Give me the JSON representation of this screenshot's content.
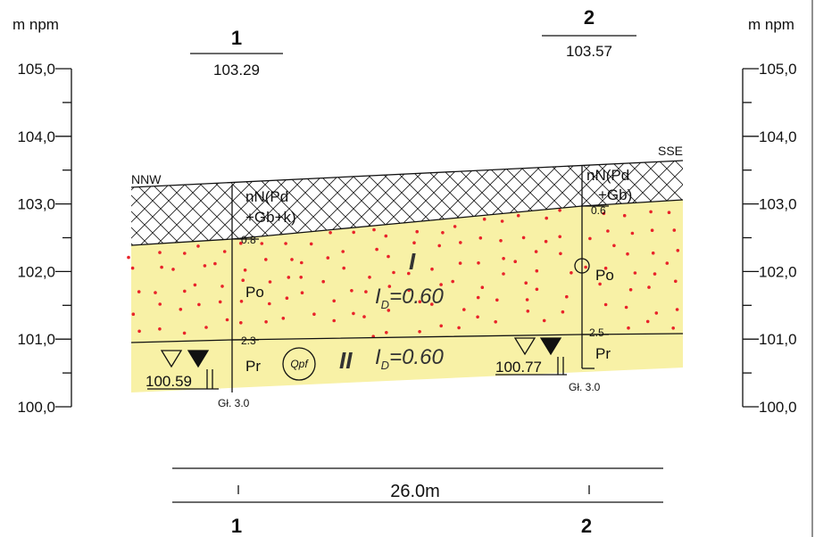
{
  "axes": {
    "left": {
      "unit": "m npm",
      "ticks": [
        "105,0",
        "104,0",
        "103,0",
        "102,0",
        "101,0",
        "100,0"
      ]
    },
    "right": {
      "unit": "m npm",
      "ticks": [
        "105,0",
        "104,0",
        "103,0",
        "102,0",
        "101,0",
        "100,0"
      ]
    }
  },
  "directions": {
    "left": "NNW",
    "right": "SSE"
  },
  "boreholes": [
    {
      "number": "1",
      "elevation": "103.29",
      "top_soil": [
        "nN(Pd",
        "+Gb+k)"
      ],
      "depth_1": "0.8",
      "layer_1": "Po",
      "depth_2": "2.3",
      "layer_2": "Pr",
      "water_level": "100.59",
      "total_depth": "Gł. 3.0"
    },
    {
      "number": "2",
      "elevation": "103.57",
      "top_soil": [
        "nN(Pd",
        "+Gb)"
      ],
      "depth_1": "0.6",
      "layer_1": "Po",
      "depth_2": "2.5",
      "layer_2": "Pr",
      "water_level": "100.77",
      "total_depth": "Gł. 3.0"
    }
  ],
  "layers": [
    {
      "roman": "I",
      "density": {
        "symbol": "I",
        "subscript": "D",
        "value": "=0.60"
      }
    },
    {
      "roman": "II",
      "genesis": "Qpf",
      "density": {
        "symbol": "I",
        "subscript": "D",
        "value": "=0.60"
      }
    }
  ],
  "distance": {
    "label": "26.0m",
    "start": "1",
    "end": "2"
  }
}
